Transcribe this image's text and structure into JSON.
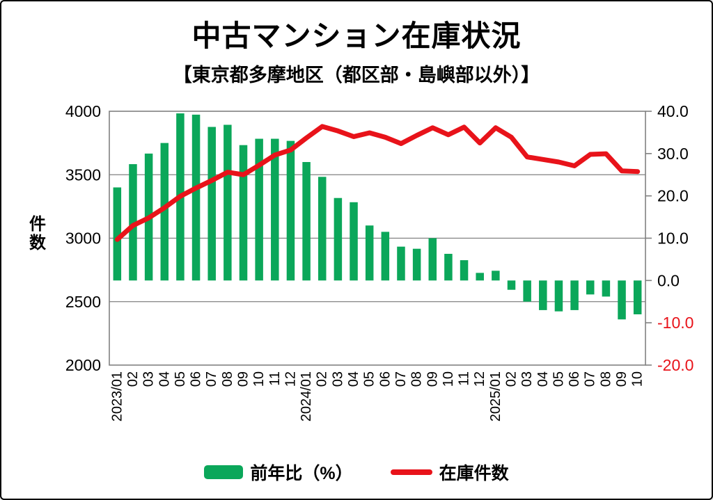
{
  "chart_data": {
    "type": "bar",
    "combo": "bar+line dual axis",
    "title": "中古マンション在庫状況",
    "subtitle": "【東京都多摩地区（都区部・島嶼部以外）】",
    "categories": [
      "2023/01",
      "02",
      "03",
      "04",
      "05",
      "06",
      "07",
      "08",
      "09",
      "10",
      "11",
      "12",
      "2024/01",
      "02",
      "03",
      "04",
      "05",
      "06",
      "07",
      "08",
      "09",
      "10",
      "11",
      "12",
      "2025/01",
      "02",
      "03",
      "04",
      "05",
      "06",
      "07",
      "08",
      "09",
      "10"
    ],
    "series": [
      {
        "name": "前年比（%）",
        "type": "bar",
        "axis": "right",
        "color": "#0ba75a",
        "values": [
          22.0,
          27.5,
          30.0,
          32.5,
          39.5,
          39.2,
          36.3,
          36.8,
          32.0,
          33.5,
          33.5,
          33.0,
          28.0,
          24.5,
          19.5,
          18.5,
          13.0,
          11.5,
          8.0,
          7.5,
          10.0,
          6.3,
          4.8,
          1.8,
          2.3,
          -2.2,
          -5.0,
          -7.0,
          -7.3,
          -7.0,
          -3.3,
          -3.8,
          -9.2,
          -8.0
        ]
      },
      {
        "name": "在庫件数",
        "type": "line",
        "axis": "left",
        "color": "#e8131a",
        "values": [
          2990,
          3100,
          3160,
          3240,
          3330,
          3395,
          3455,
          3520,
          3500,
          3575,
          3655,
          3695,
          3790,
          3880,
          3845,
          3800,
          3830,
          3795,
          3745,
          3810,
          3870,
          3815,
          3875,
          3750,
          3870,
          3795,
          3640,
          3620,
          3600,
          3570,
          3660,
          3665,
          3530,
          3525
        ]
      }
    ],
    "left_axis": {
      "label": "件数",
      "min": 2000,
      "max": 4000,
      "ticks": [
        "4000",
        "3500",
        "3000",
        "2500",
        "2000"
      ],
      "tick_values": [
        4000,
        3500,
        3000,
        2500,
        2000
      ]
    },
    "right_axis": {
      "min": -20,
      "max": 40,
      "ticks": [
        "40.0",
        "30.0",
        "20.0",
        "10.0",
        "0.0",
        "-10.0",
        "-20.0"
      ],
      "tick_values": [
        40,
        30,
        20,
        10,
        0,
        -10,
        -20
      ],
      "negative_tick_color": "#e8131a"
    },
    "gridlines_left_values": [
      3500,
      3000,
      2500
    ],
    "grid_color": "#808080",
    "legend_position": "bottom",
    "legend": [
      {
        "label": "前年比（%）",
        "swatch": "bar",
        "color": "#0ba75a"
      },
      {
        "label": "在庫件数",
        "swatch": "line",
        "color": "#e8131a"
      }
    ]
  }
}
